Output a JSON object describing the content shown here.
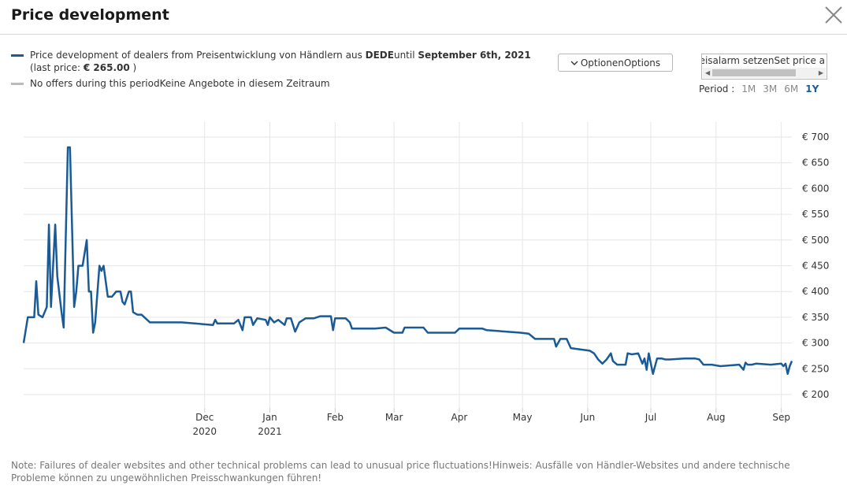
{
  "title": "Price development",
  "close_icon": "close-icon",
  "legend": {
    "series_text_prefix": "Price development of dealers from Preisentwicklung von Händlern aus ",
    "series_country": "DEDE",
    "series_until": "until ",
    "series_date": "September 6th, 2021",
    "last_price_prefix": "(last price: ",
    "last_price_value": "€ 265.00",
    "last_price_suffix": " )",
    "no_offers_text": "No offers during this periodKeine Angebote in diesem Zeitraum",
    "series_color": "#1a5b96",
    "no_offers_color": "#bbbbbb"
  },
  "options_button": {
    "label": "OptionenOptions",
    "icon": "chevron-down-icon"
  },
  "price_alarm": {
    "text": "eisalarm setzenSet price a"
  },
  "period": {
    "label": "Period :",
    "options": [
      "1M",
      "3M",
      "6M",
      "1Y"
    ],
    "active": "1Y"
  },
  "note": "Note: Failures of dealer websites and other technical problems can lead to unusual price fluctuations!Hinweis: Ausfälle von Händler-Websites und andere technische Probleme können zu ungewöhnlichen Preisschwankungen führen!",
  "chart_data": {
    "type": "line",
    "title": "",
    "xlabel": "",
    "ylabel": "",
    "ylim": [
      175,
      700
    ],
    "y_ticks": [
      700,
      650,
      600,
      550,
      500,
      450,
      400,
      350,
      300,
      250,
      200
    ],
    "y_tick_format": "€ {v}",
    "x_range": [
      "2020-09-06",
      "2021-09-06"
    ],
    "x_ticks": [
      {
        "date": "2020-12-01",
        "label": "Dec",
        "year": "2020"
      },
      {
        "date": "2021-01-01",
        "label": "Jan",
        "year": "2021"
      },
      {
        "date": "2021-02-01",
        "label": "Feb",
        "year": ""
      },
      {
        "date": "2021-03-01",
        "label": "Mar",
        "year": ""
      },
      {
        "date": "2021-04-01",
        "label": "Apr",
        "year": ""
      },
      {
        "date": "2021-05-01",
        "label": "May",
        "year": ""
      },
      {
        "date": "2021-06-01",
        "label": "Jun",
        "year": ""
      },
      {
        "date": "2021-07-01",
        "label": "Jul",
        "year": ""
      },
      {
        "date": "2021-08-01",
        "label": "Aug",
        "year": ""
      },
      {
        "date": "2021-09-01",
        "label": "Sep",
        "year": ""
      }
    ],
    "series": [
      {
        "name": "Price development of dealers",
        "color": "#1a5b96",
        "points": [
          [
            "2020-09-06",
            300
          ],
          [
            "2020-09-08",
            350
          ],
          [
            "2020-09-11",
            350
          ],
          [
            "2020-09-12",
            420
          ],
          [
            "2020-09-13",
            355
          ],
          [
            "2020-09-15",
            350
          ],
          [
            "2020-09-17",
            370
          ],
          [
            "2020-09-18",
            530
          ],
          [
            "2020-09-19",
            370
          ],
          [
            "2020-09-21",
            530
          ],
          [
            "2020-09-22",
            430
          ],
          [
            "2020-09-24",
            360
          ],
          [
            "2020-09-25",
            330
          ],
          [
            "2020-09-27",
            680
          ],
          [
            "2020-09-28",
            680
          ],
          [
            "2020-09-30",
            370
          ],
          [
            "2020-10-01",
            400
          ],
          [
            "2020-10-02",
            450
          ],
          [
            "2020-10-04",
            450
          ],
          [
            "2020-10-06",
            500
          ],
          [
            "2020-10-07",
            400
          ],
          [
            "2020-10-08",
            400
          ],
          [
            "2020-10-09",
            320
          ],
          [
            "2020-10-10",
            340
          ],
          [
            "2020-10-12",
            450
          ],
          [
            "2020-10-13",
            440
          ],
          [
            "2020-10-14",
            450
          ],
          [
            "2020-10-16",
            390
          ],
          [
            "2020-10-18",
            390
          ],
          [
            "2020-10-20",
            400
          ],
          [
            "2020-10-22",
            400
          ],
          [
            "2020-10-23",
            380
          ],
          [
            "2020-10-24",
            375
          ],
          [
            "2020-10-26",
            400
          ],
          [
            "2020-10-27",
            400
          ],
          [
            "2020-10-28",
            360
          ],
          [
            "2020-10-30",
            355
          ],
          [
            "2020-11-01",
            355
          ],
          [
            "2020-11-05",
            340
          ],
          [
            "2020-11-10",
            340
          ],
          [
            "2020-11-20",
            340
          ],
          [
            "2020-12-05",
            335
          ],
          [
            "2020-12-06",
            345
          ],
          [
            "2020-12-07",
            338
          ],
          [
            "2020-12-15",
            338
          ],
          [
            "2020-12-17",
            345
          ],
          [
            "2020-12-19",
            325
          ],
          [
            "2020-12-20",
            350
          ],
          [
            "2020-12-23",
            350
          ],
          [
            "2020-12-24",
            335
          ],
          [
            "2020-12-26",
            348
          ],
          [
            "2020-12-30",
            345
          ],
          [
            "2020-12-31",
            335
          ],
          [
            "2021-01-01",
            350
          ],
          [
            "2021-01-03",
            340
          ],
          [
            "2021-01-05",
            345
          ],
          [
            "2021-01-08",
            335
          ],
          [
            "2021-01-09",
            348
          ],
          [
            "2021-01-11",
            348
          ],
          [
            "2021-01-13",
            322
          ],
          [
            "2021-01-15",
            340
          ],
          [
            "2021-01-18",
            348
          ],
          [
            "2021-01-22",
            348
          ],
          [
            "2021-01-25",
            352
          ],
          [
            "2021-01-30",
            352
          ],
          [
            "2021-01-31",
            325
          ],
          [
            "2021-02-01",
            348
          ],
          [
            "2021-02-06",
            348
          ],
          [
            "2021-02-08",
            340
          ],
          [
            "2021-02-09",
            328
          ],
          [
            "2021-02-10",
            328
          ],
          [
            "2021-02-13",
            328
          ],
          [
            "2021-02-20",
            328
          ],
          [
            "2021-02-25",
            330
          ],
          [
            "2021-03-01",
            320
          ],
          [
            "2021-03-05",
            320
          ],
          [
            "2021-03-06",
            330
          ],
          [
            "2021-03-15",
            330
          ],
          [
            "2021-03-17",
            320
          ],
          [
            "2021-03-30",
            320
          ],
          [
            "2021-04-01",
            328
          ],
          [
            "2021-04-12",
            328
          ],
          [
            "2021-04-14",
            325
          ],
          [
            "2021-04-30",
            320
          ],
          [
            "2021-05-04",
            318
          ],
          [
            "2021-05-07",
            308
          ],
          [
            "2021-05-16",
            308
          ],
          [
            "2021-05-17",
            293
          ],
          [
            "2021-05-19",
            308
          ],
          [
            "2021-05-22",
            308
          ],
          [
            "2021-05-24",
            290
          ],
          [
            "2021-06-02",
            285
          ],
          [
            "2021-06-04",
            280
          ],
          [
            "2021-06-06",
            268
          ],
          [
            "2021-06-08",
            260
          ],
          [
            "2021-06-10",
            268
          ],
          [
            "2021-06-12",
            280
          ],
          [
            "2021-06-13",
            265
          ],
          [
            "2021-06-15",
            258
          ],
          [
            "2021-06-19",
            258
          ],
          [
            "2021-06-20",
            280
          ],
          [
            "2021-06-22",
            278
          ],
          [
            "2021-06-25",
            280
          ],
          [
            "2021-06-27",
            260
          ],
          [
            "2021-06-28",
            270
          ],
          [
            "2021-06-29",
            248
          ],
          [
            "2021-06-30",
            280
          ],
          [
            "2021-07-02",
            240
          ],
          [
            "2021-07-04",
            270
          ],
          [
            "2021-07-06",
            270
          ],
          [
            "2021-07-08",
            268
          ],
          [
            "2021-07-10",
            268
          ],
          [
            "2021-07-17",
            270
          ],
          [
            "2021-07-22",
            270
          ],
          [
            "2021-07-24",
            268
          ],
          [
            "2021-07-26",
            258
          ],
          [
            "2021-07-28",
            258
          ],
          [
            "2021-07-30",
            258
          ],
          [
            "2021-08-03",
            255
          ],
          [
            "2021-08-12",
            258
          ],
          [
            "2021-08-14",
            248
          ],
          [
            "2021-08-15",
            262
          ],
          [
            "2021-08-16",
            258
          ],
          [
            "2021-08-18",
            258
          ],
          [
            "2021-08-20",
            260
          ],
          [
            "2021-08-27",
            258
          ],
          [
            "2021-09-01",
            260
          ],
          [
            "2021-09-02",
            255
          ],
          [
            "2021-09-03",
            260
          ],
          [
            "2021-09-04",
            240
          ],
          [
            "2021-09-05",
            255
          ],
          [
            "2021-09-06",
            265
          ]
        ]
      }
    ]
  }
}
